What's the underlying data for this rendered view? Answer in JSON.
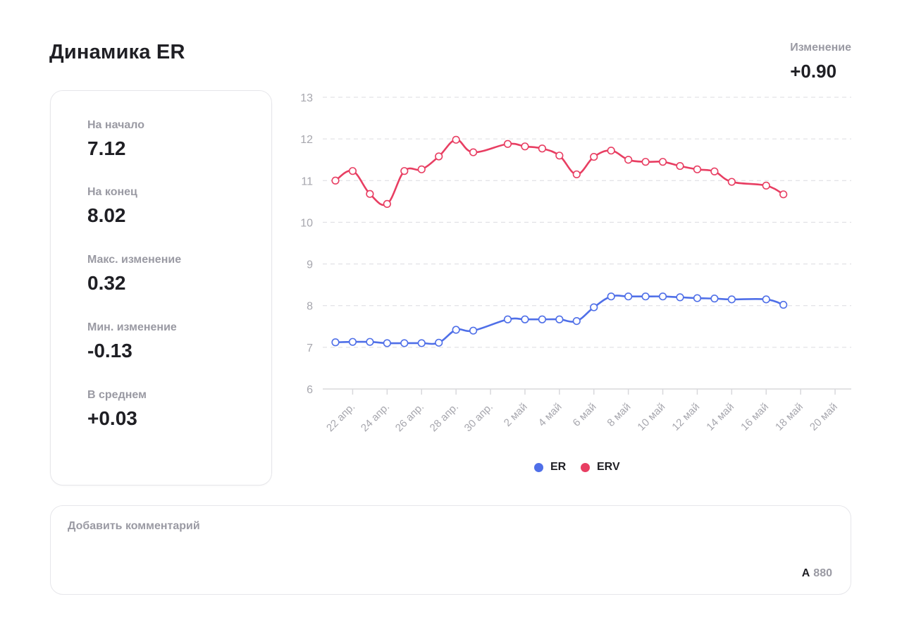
{
  "header": {
    "title": "Динамика ER"
  },
  "change": {
    "label": "Изменение",
    "value": "+0.90"
  },
  "stats": [
    {
      "label": "На начало",
      "value": "7.12"
    },
    {
      "label": "На конец",
      "value": "8.02"
    },
    {
      "label": "Макс. изменение",
      "value": "0.32"
    },
    {
      "label": "Мин. изменение",
      "value": "-0.13"
    },
    {
      "label": "В среднем",
      "value": "+0.03"
    }
  ],
  "comment": {
    "placeholder": "Добавить комментарий",
    "counter_icon": "A",
    "counter_value": "880"
  },
  "colors": {
    "er": "#4f6fe8",
    "erv": "#e83e62",
    "grid": "#dcdce0",
    "axis_text": "#a7a7ae"
  },
  "chart_data": {
    "type": "line",
    "x": [
      "21 апр.",
      "22 апр.",
      "23 апр.",
      "24 апр.",
      "25 апр.",
      "26 апр.",
      "27 апр.",
      "28 апр.",
      "29 апр.",
      "1 май",
      "2 май",
      "3 май",
      "4 май",
      "5 май",
      "6 май",
      "7 май",
      "8 май",
      "9 май",
      "10 май",
      "11 май",
      "12 май",
      "13 май",
      "14 май",
      "16 май",
      "17 май"
    ],
    "x_index": [
      0,
      1,
      2,
      3,
      4,
      5,
      6,
      7,
      8,
      10,
      11,
      12,
      13,
      14,
      15,
      16,
      17,
      18,
      19,
      20,
      21,
      22,
      23,
      25,
      26
    ],
    "tick_labels": [
      "22 апр.",
      "24 апр.",
      "26 апр.",
      "28 апр.",
      "30 апр.",
      "2 май",
      "4 май",
      "6 май",
      "8 май",
      "10 май",
      "12 май",
      "14 май",
      "16 май",
      "18 май",
      "20 май"
    ],
    "tick_index": [
      1,
      3,
      5,
      7,
      9,
      11,
      13,
      15,
      17,
      19,
      21,
      23,
      25,
      27,
      29
    ],
    "x_count": 30,
    "ylim": [
      6,
      13
    ],
    "yticks": [
      "6",
      "7",
      "8",
      "9",
      "10",
      "11",
      "12",
      "13"
    ],
    "grid": true,
    "legend_position": "bottom-center",
    "series": [
      {
        "name": "ER",
        "color": "#4f6fe8",
        "values": [
          7.12,
          7.13,
          7.13,
          7.1,
          7.1,
          7.1,
          7.11,
          7.42,
          7.4,
          7.67,
          7.67,
          7.67,
          7.67,
          7.63,
          7.96,
          8.22,
          8.22,
          8.22,
          8.22,
          8.2,
          8.18,
          8.17,
          8.15,
          8.15,
          8.02
        ]
      },
      {
        "name": "ERV",
        "color": "#e83e62",
        "values": [
          11.0,
          11.23,
          10.68,
          10.44,
          11.23,
          11.27,
          11.58,
          11.98,
          11.68,
          11.88,
          11.82,
          11.77,
          11.6,
          11.15,
          11.57,
          11.72,
          11.5,
          11.45,
          11.45,
          11.35,
          11.27,
          11.22,
          10.97,
          10.88,
          10.67
        ]
      }
    ]
  }
}
